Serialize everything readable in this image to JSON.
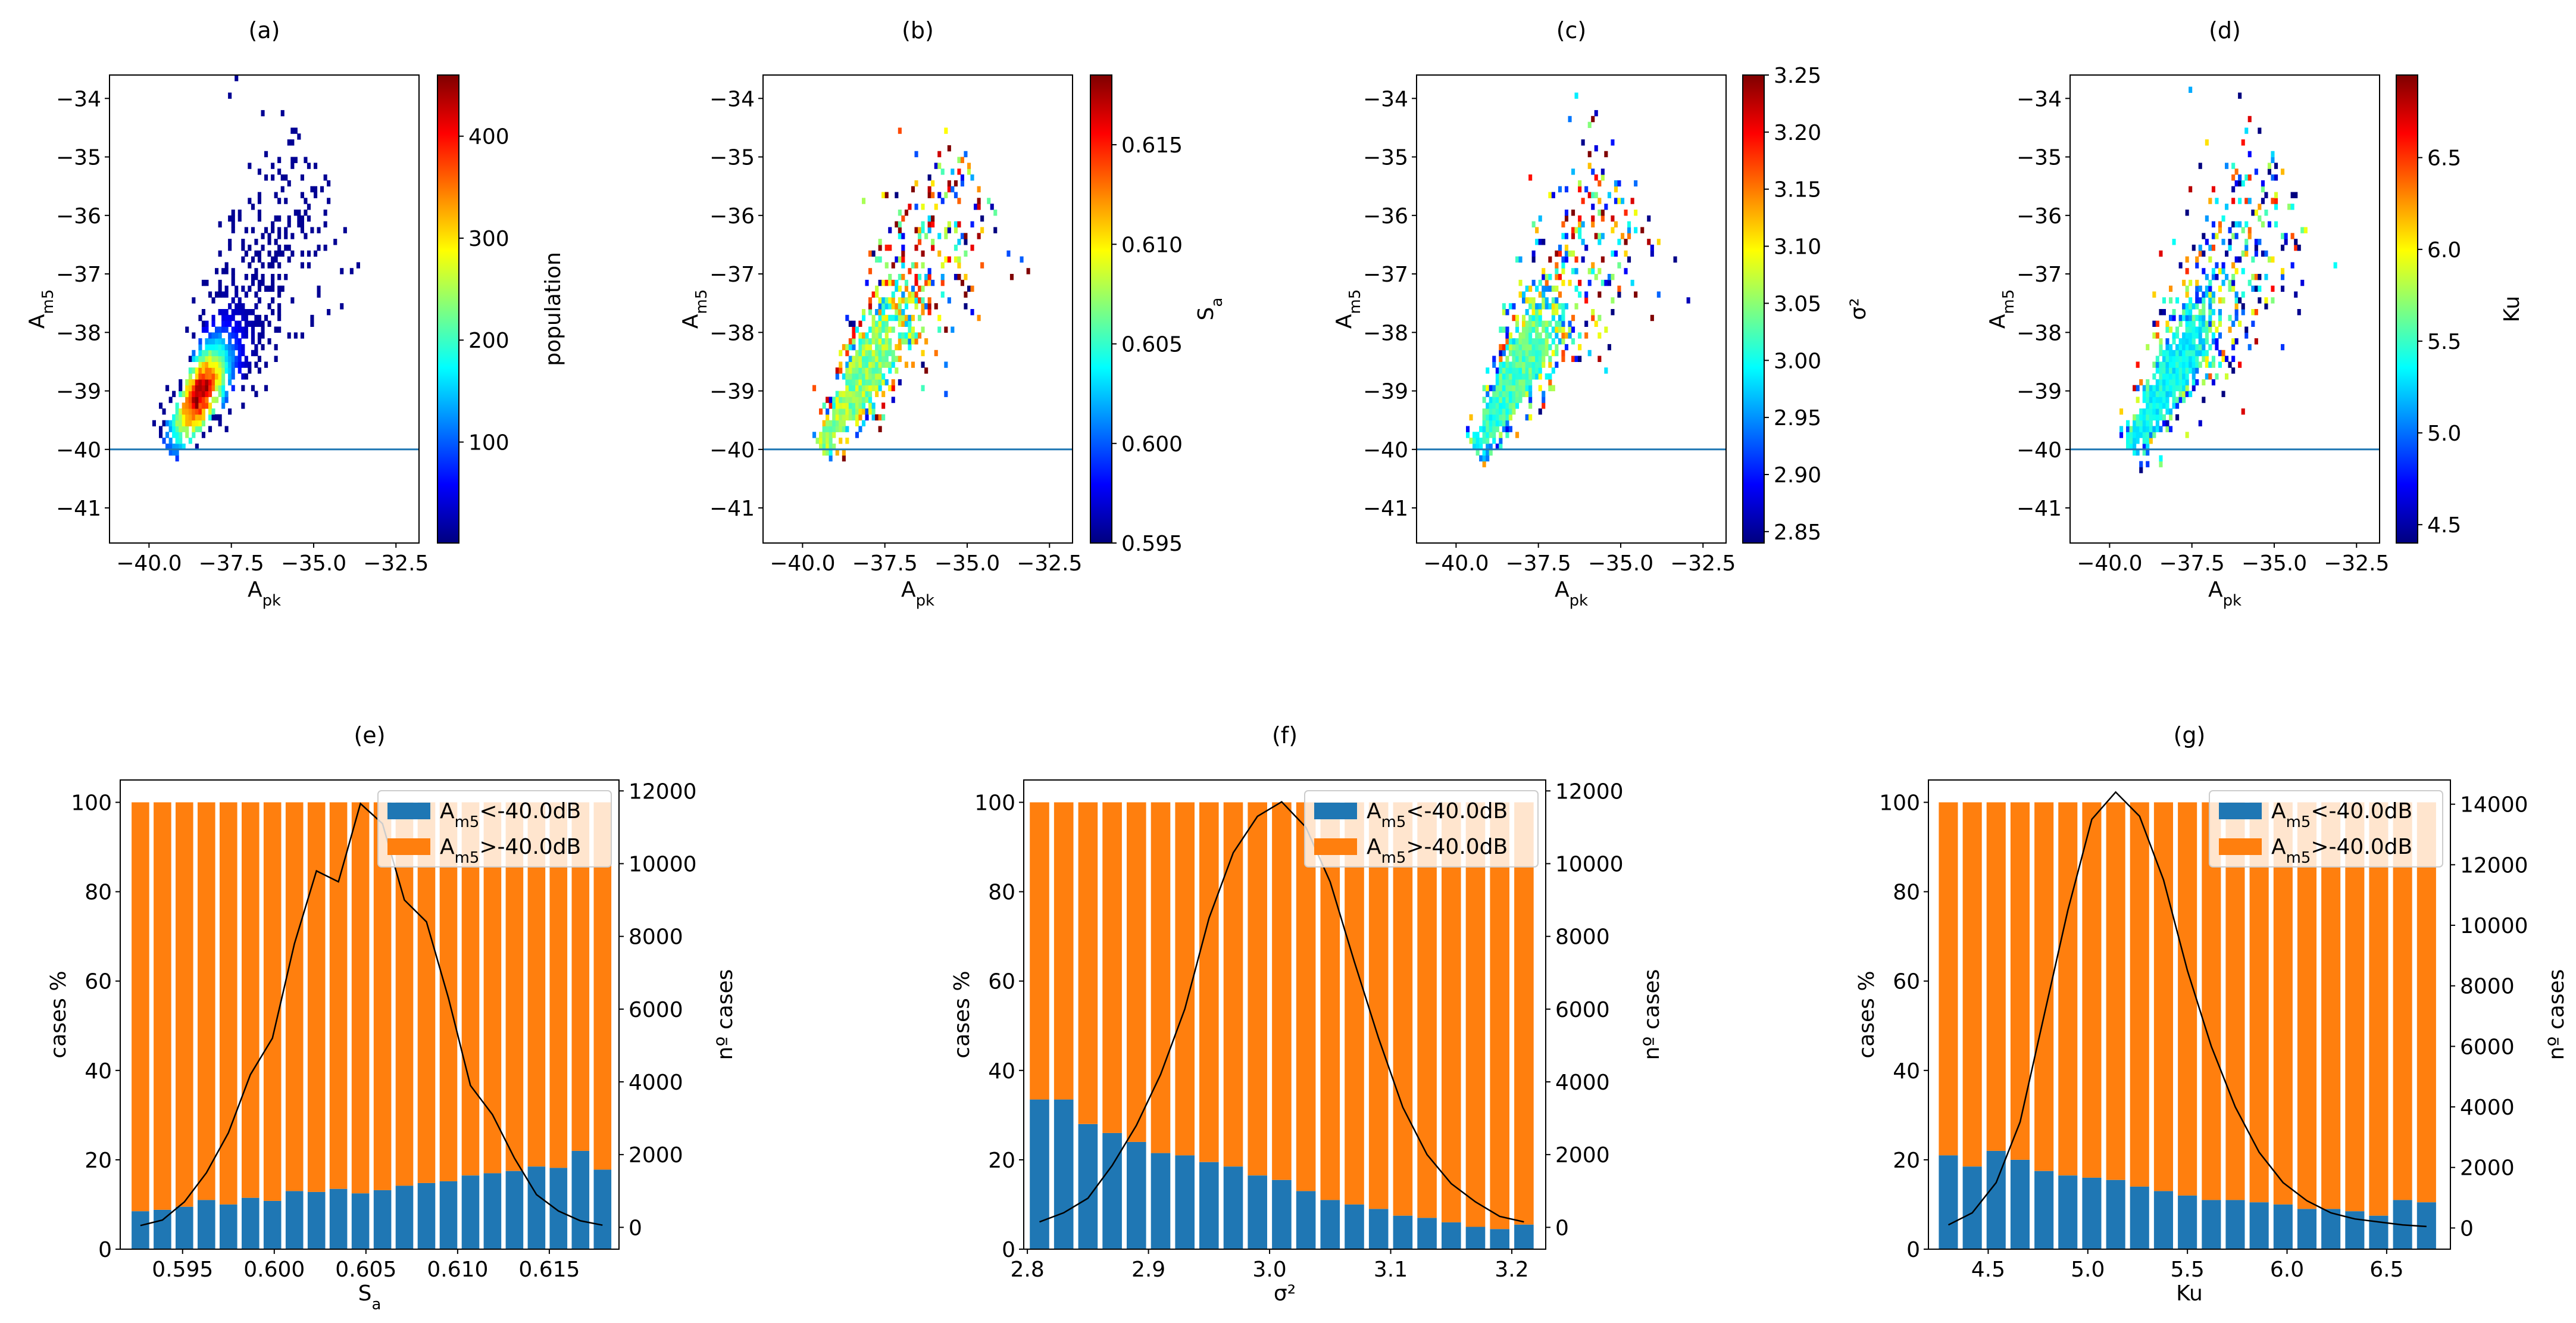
{
  "colors": {
    "jet_stops": [
      "#00007f",
      "#0000ff",
      "#007fff",
      "#00ffff",
      "#7fff7f",
      "#ffff00",
      "#ff7f00",
      "#ff0000",
      "#7f0000"
    ],
    "bar_below": "#1f77b4",
    "bar_above": "#ff7f0e",
    "threshold_line": "#1f77b4",
    "count_line": "#000000"
  },
  "chart_data": [
    {
      "panel": "(a)",
      "type": "heatmap",
      "xlabel": "A_pk",
      "ylabel": "A_m5",
      "xlim": [
        -41.2,
        -31.8
      ],
      "ylim": [
        -41.6,
        -33.6
      ],
      "xticks": [
        -40.0,
        -37.5,
        -35.0,
        -32.5
      ],
      "xtick_labels": [
        "−40.0",
        "−37.5",
        "−35.0",
        "−32.5"
      ],
      "yticks": [
        -41,
        -40,
        -39,
        -38,
        -37,
        -36,
        -35,
        -34
      ],
      "ytick_labels": [
        "−41",
        "−40",
        "−39",
        "−38",
        "−37",
        "−36",
        "−35",
        "−34"
      ],
      "threshold": -40,
      "colorbar": {
        "label": "population",
        "range": [
          1,
          460
        ],
        "ticks": [
          100,
          200,
          300,
          400
        ],
        "tick_labels": [
          "100",
          "200",
          "300",
          "400"
        ]
      },
      "field": "population"
    },
    {
      "panel": "(b)",
      "type": "heatmap",
      "xlabel": "A_pk",
      "ylabel": "A_m5",
      "xlim": [
        -41.2,
        -31.8
      ],
      "ylim": [
        -41.6,
        -33.6
      ],
      "xticks": [
        -40.0,
        -37.5,
        -35.0,
        -32.5
      ],
      "xtick_labels": [
        "−40.0",
        "−37.5",
        "−35.0",
        "−32.5"
      ],
      "yticks": [
        -41,
        -40,
        -39,
        -38,
        -37,
        -36,
        -35,
        -34
      ],
      "ytick_labels": [
        "−41",
        "−40",
        "−39",
        "−38",
        "−37",
        "−36",
        "−35",
        "−34"
      ],
      "threshold": -40,
      "colorbar": {
        "label": "S_a",
        "range": [
          0.595,
          0.6185
        ],
        "ticks": [
          0.595,
          0.6,
          0.605,
          0.61,
          0.615
        ],
        "tick_labels": [
          "0.595",
          "0.600",
          "0.605",
          "0.610",
          "0.615"
        ]
      },
      "field": "mean"
    },
    {
      "panel": "(c)",
      "type": "heatmap",
      "xlabel": "A_pk",
      "ylabel": "A_m5",
      "xlim": [
        -41.2,
        -31.8
      ],
      "ylim": [
        -41.6,
        -33.6
      ],
      "xticks": [
        -40.0,
        -37.5,
        -35.0,
        -32.5
      ],
      "xtick_labels": [
        "−40.0",
        "−37.5",
        "−35.0",
        "−32.5"
      ],
      "yticks": [
        -41,
        -40,
        -39,
        -38,
        -37,
        -36,
        -35,
        -34
      ],
      "ytick_labels": [
        "−41",
        "−40",
        "−39",
        "−38",
        "−37",
        "−36",
        "−35",
        "−34"
      ],
      "threshold": -40,
      "colorbar": {
        "label": "σ²",
        "range": [
          2.84,
          3.25
        ],
        "ticks": [
          2.85,
          2.9,
          2.95,
          3.0,
          3.05,
          3.1,
          3.15,
          3.2,
          3.25
        ],
        "tick_labels": [
          "2.85",
          "2.90",
          "2.95",
          "3.00",
          "3.05",
          "3.10",
          "3.15",
          "3.20",
          "3.25"
        ]
      },
      "field": "mean"
    },
    {
      "panel": "(d)",
      "type": "heatmap",
      "xlabel": "A_pk",
      "ylabel": "A_m5",
      "xlim": [
        -41.2,
        -31.8
      ],
      "ylim": [
        -41.6,
        -33.6
      ],
      "xticks": [
        -40.0,
        -37.5,
        -35.0,
        -32.5
      ],
      "xtick_labels": [
        "−40.0",
        "−37.5",
        "−35.0",
        "−32.5"
      ],
      "yticks": [
        -41,
        -40,
        -39,
        -38,
        -37,
        -36,
        -35,
        -34
      ],
      "ytick_labels": [
        "−41",
        "−40",
        "−39",
        "−38",
        "−37",
        "−36",
        "−35",
        "−34"
      ],
      "threshold": -40,
      "colorbar": {
        "label": "Ku",
        "range": [
          4.4,
          6.95
        ],
        "ticks": [
          4.5,
          5.0,
          5.5,
          6.0,
          6.5
        ],
        "tick_labels": [
          "4.5",
          "5.0",
          "5.5",
          "6.0",
          "6.5"
        ]
      },
      "field": "mean"
    },
    {
      "panel": "(e)",
      "type": "bar",
      "xlabel": "S_a",
      "ylabel": "cases %",
      "y2label": "nº cases",
      "legend": [
        "A_m5<-40.0dB",
        "A_m5>-40.0dB"
      ],
      "legend_placement": "top-right",
      "x": [
        0.5927,
        0.5939,
        0.5951,
        0.5963,
        0.5975,
        0.5987,
        0.5999,
        0.6011,
        0.6023,
        0.6035,
        0.6047,
        0.6059,
        0.6071,
        0.6083,
        0.6095,
        0.6107,
        0.6119,
        0.6131,
        0.6143,
        0.6155,
        0.6167,
        0.6179
      ],
      "below_pct": [
        8.5,
        8.8,
        9.5,
        11.0,
        10.0,
        11.5,
        10.8,
        13.0,
        12.8,
        13.5,
        12.5,
        13.2,
        14.2,
        14.8,
        15.2,
        16.5,
        17.0,
        17.5,
        18.5,
        18.2,
        22.0,
        17.8
      ],
      "above_pct": [
        91.5,
        91.2,
        90.5,
        89.0,
        90.0,
        88.5,
        89.2,
        87.0,
        87.2,
        86.5,
        87.5,
        86.8,
        85.8,
        85.2,
        84.8,
        83.5,
        83.0,
        82.5,
        81.5,
        81.8,
        78.0,
        82.2
      ],
      "counts": [
        50,
        200,
        700,
        1500,
        2600,
        4200,
        5200,
        7800,
        9800,
        9500,
        11650,
        11100,
        9000,
        8400,
        6300,
        3900,
        3100,
        1900,
        900,
        450,
        180,
        60
      ],
      "xlim": [
        0.5916,
        0.6188
      ],
      "xticks": [
        0.595,
        0.6,
        0.605,
        0.61,
        0.615
      ],
      "xtick_labels": [
        "0.595",
        "0.600",
        "0.605",
        "0.610",
        "0.615"
      ],
      "ylim": [
        0,
        105
      ],
      "yticks": [
        0,
        20,
        40,
        60,
        80,
        100
      ],
      "ytick_labels": [
        "0",
        "20",
        "40",
        "60",
        "80",
        "100"
      ],
      "y2lim": [
        -600,
        12300
      ],
      "y2ticks": [
        0,
        2000,
        4000,
        6000,
        8000,
        10000,
        12000
      ],
      "y2tick_labels": [
        "0",
        "2000",
        "4000",
        "6000",
        "8000",
        "10000",
        "12000"
      ]
    },
    {
      "panel": "(f)",
      "type": "bar",
      "xlabel": "σ²",
      "ylabel": "cases %",
      "y2label": "nº cases",
      "legend": [
        "A_m5<-40.0dB",
        "A_m5>-40.0dB"
      ],
      "legend_placement": "top-right",
      "x": [
        2.81,
        2.83,
        2.85,
        2.87,
        2.89,
        2.91,
        2.93,
        2.95,
        2.97,
        2.99,
        3.01,
        3.03,
        3.05,
        3.07,
        3.09,
        3.11,
        3.13,
        3.15,
        3.17,
        3.19,
        3.21
      ],
      "below_pct": [
        33.5,
        33.5,
        28.0,
        26.0,
        24.0,
        21.5,
        21.0,
        19.5,
        18.5,
        16.5,
        15.5,
        13.0,
        11.0,
        10.0,
        9.0,
        7.5,
        7.0,
        6.0,
        5.0,
        4.5,
        5.5
      ],
      "above_pct": [
        66.5,
        66.5,
        72.0,
        74.0,
        76.0,
        78.5,
        79.0,
        80.5,
        81.5,
        83.5,
        84.5,
        87.0,
        89.0,
        90.0,
        91.0,
        92.5,
        93.0,
        94.0,
        95.0,
        95.5,
        94.5
      ],
      "counts": [
        150,
        400,
        800,
        1700,
        2800,
        4200,
        6000,
        8500,
        10300,
        11300,
        11700,
        11000,
        9500,
        7300,
        5200,
        3300,
        2000,
        1200,
        700,
        300,
        150
      ],
      "xlim": [
        2.797,
        3.228
      ],
      "xticks": [
        2.8,
        2.9,
        3.0,
        3.1,
        3.2
      ],
      "xtick_labels": [
        "2.8",
        "2.9",
        "3.0",
        "3.1",
        "3.2"
      ],
      "ylim": [
        0,
        105
      ],
      "yticks": [
        0,
        20,
        40,
        60,
        80,
        100
      ],
      "ytick_labels": [
        "0",
        "20",
        "40",
        "60",
        "80",
        "100"
      ],
      "y2lim": [
        -600,
        12300
      ],
      "y2ticks": [
        0,
        2000,
        4000,
        6000,
        8000,
        10000,
        12000
      ],
      "y2tick_labels": [
        "0",
        "2000",
        "4000",
        "6000",
        "8000",
        "10000",
        "12000"
      ]
    },
    {
      "panel": "(g)",
      "type": "bar",
      "xlabel": "Ku",
      "ylabel": "cases %",
      "y2label": "nº cases",
      "legend": [
        "A_m5<-40.0dB",
        "A_m5>-40.0dB"
      ],
      "legend_placement": "top-right",
      "x": [
        4.3,
        4.42,
        4.54,
        4.66,
        4.78,
        4.9,
        5.02,
        5.14,
        5.26,
        5.38,
        5.5,
        5.62,
        5.74,
        5.86,
        5.98,
        6.1,
        6.22,
        6.34,
        6.46,
        6.58,
        6.7
      ],
      "below_pct": [
        21.0,
        18.5,
        22.0,
        20.0,
        17.5,
        16.5,
        16.0,
        15.5,
        14.0,
        13.0,
        12.0,
        11.0,
        11.0,
        10.5,
        10.0,
        9.0,
        9.0,
        8.5,
        7.5,
        11.0,
        10.5
      ],
      "above_pct": [
        79.0,
        81.5,
        78.0,
        80.0,
        82.5,
        83.5,
        84.0,
        84.5,
        86.0,
        87.0,
        88.0,
        89.0,
        89.0,
        89.5,
        90.0,
        91.0,
        91.0,
        91.5,
        92.5,
        89.0,
        89.5
      ],
      "counts": [
        100,
        500,
        1500,
        3500,
        7000,
        10500,
        13500,
        14400,
        13600,
        11500,
        8500,
        6000,
        4000,
        2500,
        1500,
        900,
        500,
        300,
        200,
        100,
        50
      ],
      "xlim": [
        4.2,
        6.82
      ],
      "xticks": [
        4.5,
        5.0,
        5.5,
        6.0,
        6.5
      ],
      "xtick_labels": [
        "4.5",
        "5.0",
        "5.5",
        "6.0",
        "6.5"
      ],
      "ylim": [
        0,
        105
      ],
      "yticks": [
        0,
        20,
        40,
        60,
        80,
        100
      ],
      "ytick_labels": [
        "0",
        "20",
        "40",
        "60",
        "80",
        "100"
      ],
      "y2lim": [
        -700,
        14800
      ],
      "y2ticks": [
        0,
        2000,
        4000,
        6000,
        8000,
        10000,
        12000,
        14000
      ],
      "y2tick_labels": [
        "0",
        "2000",
        "4000",
        "6000",
        "8000",
        "10000",
        "12000",
        "14000"
      ]
    }
  ]
}
